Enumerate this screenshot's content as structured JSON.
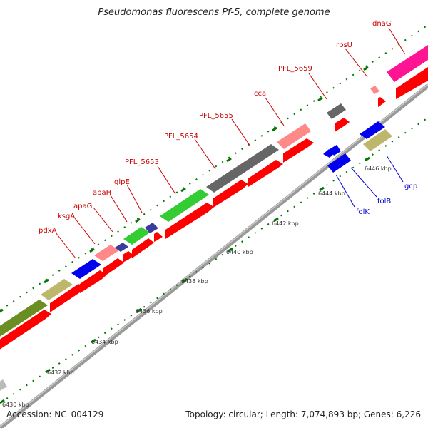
{
  "title": "Pseudomonas fluorescens Pf-5, complete genome",
  "footer": {
    "accession": "Accession: NC_004129",
    "summary": "Topology: circular; Length: 7,074,893 bp; Genes: 6,226"
  },
  "colors": {
    "cds_red": "#ff0000",
    "backbone": "#999999",
    "tick_green": "#007700",
    "label_red": "#cc0000",
    "label_blue": "#0000cc",
    "gene_blue": "#0000ee",
    "gene_green": "#33cc33",
    "gene_olive": "#6b8e23",
    "gene_khaki": "#bdb76b",
    "gene_pink": "#ff8888",
    "gene_gray": "#666666",
    "gene_navy": "#3b3b9c",
    "gene_magenta": "#ff1493"
  },
  "kbp_labels": [
    "6430 kbp",
    "6432 kbp",
    "6434 kbp",
    "6436 kbp",
    "6438 kbp",
    "6440 kbp",
    "6442 kbp",
    "6444 kbp",
    "6446 kbp"
  ],
  "gene_labels_forward": [
    "pdxA",
    "ksgA",
    "apaG",
    "apaH",
    "glpE",
    "PFL_5653",
    "PFL_5654",
    "PFL_5655",
    "cca",
    "PFL_5659",
    "rpsU",
    "dnaG"
  ],
  "gene_labels_reverse": [
    "folK",
    "folB",
    "gcp"
  ]
}
